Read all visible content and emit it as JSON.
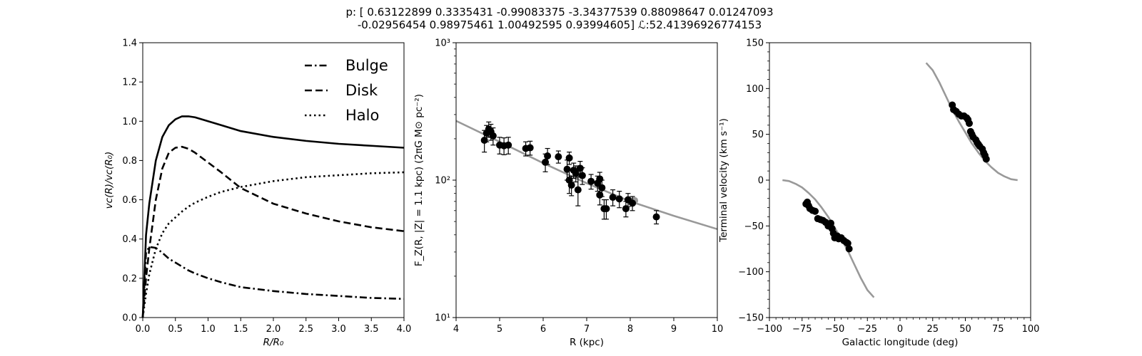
{
  "title": {
    "line1": "p: [ 0.63122899  0.3335431  -0.99083375 -3.34377539  0.88098647  0.01247093",
    "line2": "-0.02956454  0.98975461  1.00492595  0.93994605]  ℒ:52.41396926774153"
  },
  "chart_data": [
    {
      "type": "line",
      "xlabel": "R/R₀",
      "ylabel": "vᴄ(R)/vᴄ(R₀)",
      "xlim": [
        0,
        4
      ],
      "ylim": [
        0,
        1.4
      ],
      "xticks": [
        0.0,
        0.5,
        1.0,
        1.5,
        2.0,
        2.5,
        3.0,
        3.5,
        4.0
      ],
      "xtick_labels": [
        "0.0",
        "0.5",
        "1.0",
        "1.5",
        "2.0",
        "2.5",
        "3.0",
        "3.5",
        "4.0"
      ],
      "yticks": [
        0.0,
        0.2,
        0.4,
        0.6,
        0.8,
        1.0,
        1.2,
        1.4
      ],
      "ytick_labels": [
        "0.0",
        "0.2",
        "0.4",
        "0.6",
        "0.8",
        "1.0",
        "1.2",
        "1.4"
      ],
      "legend_position": "top-right",
      "x": [
        0.0,
        0.05,
        0.1,
        0.2,
        0.3,
        0.4,
        0.5,
        0.6,
        0.7,
        0.8,
        1.0,
        1.2,
        1.5,
        2.0,
        2.5,
        3.0,
        3.5,
        4.0
      ],
      "series": [
        {
          "name": "",
          "style": "solid",
          "values": [
            0.0,
            0.42,
            0.58,
            0.8,
            0.92,
            0.98,
            1.01,
            1.025,
            1.025,
            1.02,
            1.0,
            0.98,
            0.95,
            0.92,
            0.9,
            0.885,
            0.875,
            0.865
          ]
        },
        {
          "name": "Bulge",
          "style": "dashdot",
          "values": [
            0.0,
            0.33,
            0.36,
            0.355,
            0.33,
            0.3,
            0.28,
            0.26,
            0.24,
            0.225,
            0.2,
            0.18,
            0.155,
            0.135,
            0.12,
            0.11,
            0.1,
            0.095
          ]
        },
        {
          "name": "Disk",
          "style": "dashed",
          "values": [
            0.0,
            0.2,
            0.35,
            0.6,
            0.76,
            0.84,
            0.865,
            0.87,
            0.86,
            0.84,
            0.79,
            0.74,
            0.66,
            0.58,
            0.53,
            0.49,
            0.46,
            0.44
          ]
        },
        {
          "name": "Halo",
          "style": "dotted",
          "values": [
            0.0,
            0.12,
            0.22,
            0.35,
            0.43,
            0.48,
            0.51,
            0.54,
            0.565,
            0.585,
            0.615,
            0.64,
            0.665,
            0.695,
            0.715,
            0.725,
            0.735,
            0.74
          ]
        }
      ]
    },
    {
      "type": "scatter",
      "xlabel": "R (kpc)",
      "ylabel": "F_Z(R, |Z| = 1.1 kpc) (2πG M⊙ pc⁻²)",
      "xlim": [
        4,
        10
      ],
      "ylim": [
        10,
        1000
      ],
      "yscale": "log",
      "xticks": [
        4,
        5,
        6,
        7,
        8,
        9,
        10
      ],
      "xtick_labels": [
        "4",
        "5",
        "6",
        "7",
        "8",
        "9",
        "10"
      ],
      "yticks": [
        10,
        100,
        1000
      ],
      "ytick_labels": [
        "10¹",
        "10²",
        "10³"
      ],
      "model_line": {
        "x": [
          4,
          5,
          6,
          7,
          8,
          9,
          10
        ],
        "y": [
          270,
          190,
          133,
          95,
          70,
          55,
          44
        ]
      },
      "points": [
        {
          "x": 4.65,
          "y": 195,
          "err": 35
        },
        {
          "x": 4.7,
          "y": 220,
          "err": 30
        },
        {
          "x": 4.75,
          "y": 235,
          "err": 30
        },
        {
          "x": 4.8,
          "y": 225,
          "err": 30
        },
        {
          "x": 4.85,
          "y": 210,
          "err": 30
        },
        {
          "x": 5.0,
          "y": 180,
          "err": 25
        },
        {
          "x": 5.1,
          "y": 178,
          "err": 25
        },
        {
          "x": 5.2,
          "y": 180,
          "err": 25
        },
        {
          "x": 5.6,
          "y": 170,
          "err": 20
        },
        {
          "x": 5.7,
          "y": 172,
          "err": 20
        },
        {
          "x": 6.05,
          "y": 135,
          "err": 20
        },
        {
          "x": 6.1,
          "y": 150,
          "err": 20
        },
        {
          "x": 6.35,
          "y": 148,
          "err": 15
        },
        {
          "x": 6.55,
          "y": 120,
          "err": 20
        },
        {
          "x": 6.6,
          "y": 145,
          "err": 15
        },
        {
          "x": 6.6,
          "y": 100,
          "err": 20
        },
        {
          "x": 6.65,
          "y": 92,
          "err": 15
        },
        {
          "x": 6.7,
          "y": 118,
          "err": 15
        },
        {
          "x": 6.75,
          "y": 112,
          "err": 15
        },
        {
          "x": 6.8,
          "y": 85,
          "err": 20
        },
        {
          "x": 6.85,
          "y": 122,
          "err": 15
        },
        {
          "x": 6.9,
          "y": 108,
          "err": 15
        },
        {
          "x": 7.1,
          "y": 98,
          "err": 12
        },
        {
          "x": 7.25,
          "y": 95,
          "err": 12
        },
        {
          "x": 7.3,
          "y": 102,
          "err": 12
        },
        {
          "x": 7.3,
          "y": 78,
          "err": 12
        },
        {
          "x": 7.35,
          "y": 88,
          "err": 12
        },
        {
          "x": 7.4,
          "y": 62,
          "err": 10
        },
        {
          "x": 7.45,
          "y": 62,
          "err": 10
        },
        {
          "x": 7.6,
          "y": 75,
          "err": 10
        },
        {
          "x": 7.75,
          "y": 73,
          "err": 10
        },
        {
          "x": 7.9,
          "y": 62,
          "err": 8
        },
        {
          "x": 7.95,
          "y": 72,
          "err": 8
        },
        {
          "x": 8.05,
          "y": 68,
          "err": 8
        },
        {
          "x": 8.6,
          "y": 54,
          "err": 6
        }
      ],
      "grey_points": [
        {
          "x": 8.0,
          "y": 70
        },
        {
          "x": 8.05,
          "y": 68
        },
        {
          "x": 8.1,
          "y": 71
        }
      ]
    },
    {
      "type": "scatter",
      "xlabel": "Galactic longitude (deg)",
      "ylabel": "Terminal velocity (km s⁻¹)",
      "xlim": [
        -100,
        100
      ],
      "ylim": [
        -150,
        150
      ],
      "xticks": [
        -100,
        -75,
        -50,
        -25,
        0,
        25,
        50,
        75,
        100
      ],
      "xtick_labels": [
        "−100",
        "−75",
        "−50",
        "−25",
        "0",
        "25",
        "50",
        "75",
        "100"
      ],
      "yticks": [
        -150,
        -100,
        -50,
        0,
        50,
        100,
        150
      ],
      "ytick_labels": [
        "−150",
        "−100",
        "−50",
        "0",
        "50",
        "100",
        "150"
      ],
      "model_left": {
        "x": [
          -90,
          -85,
          -80,
          -75,
          -70,
          -65,
          -60,
          -55,
          -50,
          -45,
          -40,
          -35,
          -30,
          -25,
          -20
        ],
        "y": [
          0,
          -1,
          -4,
          -8,
          -14,
          -21,
          -30,
          -40,
          -52,
          -64,
          -77,
          -92,
          -107,
          -120,
          -128
        ]
      },
      "model_right": {
        "x": [
          20,
          25,
          30,
          35,
          40,
          45,
          50,
          55,
          60,
          65,
          70,
          75,
          80,
          85,
          90
        ],
        "y": [
          128,
          120,
          107,
          92,
          77,
          64,
          52,
          40,
          30,
          21,
          14,
          8,
          4,
          1,
          0
        ]
      },
      "points": [
        {
          "x": -72,
          "y": -26
        },
        {
          "x": -71,
          "y": -24
        },
        {
          "x": -70,
          "y": -28
        },
        {
          "x": -69,
          "y": -31
        },
        {
          "x": -67,
          "y": -33
        },
        {
          "x": -65,
          "y": -34
        },
        {
          "x": -63,
          "y": -42
        },
        {
          "x": -61,
          "y": -43
        },
        {
          "x": -59,
          "y": -44
        },
        {
          "x": -57,
          "y": -46
        },
        {
          "x": -55,
          "y": -50
        },
        {
          "x": -53,
          "y": -47
        },
        {
          "x": -52,
          "y": -53
        },
        {
          "x": -51,
          "y": -58
        },
        {
          "x": -50,
          "y": -63
        },
        {
          "x": -48,
          "y": -61
        },
        {
          "x": -47,
          "y": -64
        },
        {
          "x": -45,
          "y": -63
        },
        {
          "x": -43,
          "y": -66
        },
        {
          "x": -41,
          "y": -68
        },
        {
          "x": -40,
          "y": -69
        },
        {
          "x": -39,
          "y": -75
        },
        {
          "x": 40,
          "y": 82
        },
        {
          "x": 41,
          "y": 77
        },
        {
          "x": 43,
          "y": 75
        },
        {
          "x": 45,
          "y": 72
        },
        {
          "x": 47,
          "y": 70
        },
        {
          "x": 49,
          "y": 70
        },
        {
          "x": 51,
          "y": 68
        },
        {
          "x": 52,
          "y": 66
        },
        {
          "x": 53,
          "y": 62
        },
        {
          "x": 54,
          "y": 53
        },
        {
          "x": 55,
          "y": 50
        },
        {
          "x": 56,
          "y": 47
        },
        {
          "x": 58,
          "y": 44
        },
        {
          "x": 59,
          "y": 41
        },
        {
          "x": 60,
          "y": 39
        },
        {
          "x": 61,
          "y": 37
        },
        {
          "x": 63,
          "y": 34
        },
        {
          "x": 64,
          "y": 30
        },
        {
          "x": 65,
          "y": 27
        },
        {
          "x": 66,
          "y": 23
        }
      ]
    }
  ]
}
